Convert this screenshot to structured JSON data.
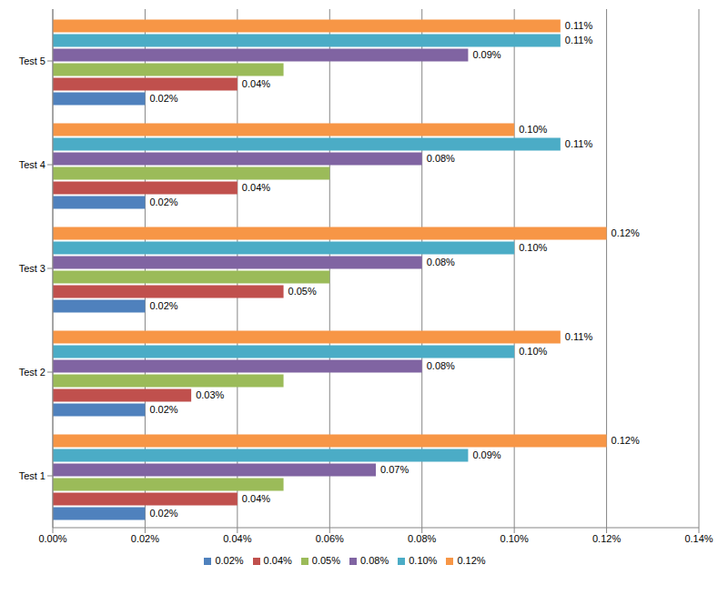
{
  "chart_data": {
    "type": "bar",
    "orientation": "horizontal",
    "grid": true,
    "legend": "bottom",
    "data_labels": true,
    "categories": [
      "Test 1",
      "Test 2",
      "Test 3",
      "Test 4",
      "Test 5"
    ],
    "xlim": [
      0,
      0.14
    ],
    "xticks": [
      {
        "value": 0,
        "label": "0.00%"
      },
      {
        "value": 0.02,
        "label": "0.02%"
      },
      {
        "value": 0.04,
        "label": "0.04%"
      },
      {
        "value": 0.06,
        "label": "0.06%"
      },
      {
        "value": 0.08,
        "label": "0.08%"
      },
      {
        "value": 0.1,
        "label": "0.10%"
      },
      {
        "value": 0.12,
        "label": "0.12%"
      },
      {
        "value": 0.14,
        "label": "0.14%"
      }
    ],
    "series": [
      {
        "name": "0.12%",
        "color": "#F79646",
        "values": [
          0.12,
          0.11,
          0.12,
          0.1,
          0.11
        ],
        "value_labels": [
          "0.12%",
          "0.11%",
          "0.12%",
          "0.10%",
          "0.11%"
        ]
      },
      {
        "name": "0.10%",
        "color": "#4BACC6",
        "values": [
          0.09,
          0.1,
          0.1,
          0.11,
          0.11
        ],
        "value_labels": [
          "0.09%",
          "0.10%",
          "0.10%",
          "0.11%",
          "0.11%"
        ]
      },
      {
        "name": "0.08%",
        "color": "#8064A2",
        "values": [
          0.07,
          0.08,
          0.08,
          0.08,
          0.09
        ],
        "value_labels": [
          "0.07%",
          "0.08%",
          "0.08%",
          "0.08%",
          "0.09%"
        ]
      },
      {
        "name": "0.05%",
        "color": "#9BBB59",
        "values": [
          0.05,
          0.05,
          0.06,
          0.06,
          0.05
        ]
      },
      {
        "name": "0.04%",
        "color": "#C0504D",
        "values": [
          0.04,
          0.03,
          0.05,
          0.04,
          0.04
        ],
        "value_labels": [
          "0.04%",
          "0.03%",
          "0.05%",
          "0.04%",
          "0.04%"
        ]
      },
      {
        "name": "0.02%",
        "color": "#4F81BD",
        "values": [
          0.02,
          0.02,
          0.02,
          0.02,
          0.02
        ],
        "value_labels": [
          "0.02%",
          "0.02%",
          "0.02%",
          "0.02%",
          "0.02%"
        ]
      }
    ]
  }
}
